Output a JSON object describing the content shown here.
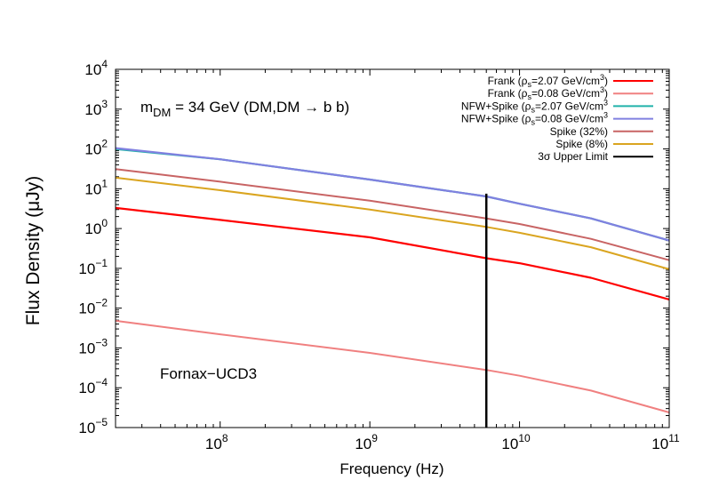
{
  "chart_data": {
    "type": "line",
    "title": "",
    "xlabel": "Frequency (Hz)",
    "ylabel": "Flux Density (μJy)",
    "xscale": "log",
    "yscale": "log",
    "xlim": [
      20000000.0,
      100000000000.0
    ],
    "ylim": [
      1e-05,
      10000.0
    ],
    "grid": false,
    "legend_position": "top-right",
    "x_ticks": [
      {
        "value": 100000000.0,
        "base": "10",
        "exp": "8"
      },
      {
        "value": 1000000000.0,
        "base": "10",
        "exp": "9"
      },
      {
        "value": 10000000000.0,
        "base": "10",
        "exp": "10"
      },
      {
        "value": 100000000000.0,
        "base": "10",
        "exp": "11"
      }
    ],
    "y_ticks": [
      {
        "value": 1e-05,
        "base": "10",
        "exp": "−5"
      },
      {
        "value": 0.0001,
        "base": "10",
        "exp": "−4"
      },
      {
        "value": 0.001,
        "base": "10",
        "exp": "−3"
      },
      {
        "value": 0.01,
        "base": "10",
        "exp": "−2"
      },
      {
        "value": 0.1,
        "base": "10",
        "exp": "−1"
      },
      {
        "value": 1.0,
        "base": "10",
        "exp": "0"
      },
      {
        "value": 10.0,
        "base": "10",
        "exp": "1"
      },
      {
        "value": 100.0,
        "base": "10",
        "exp": "2"
      },
      {
        "value": 1000.0,
        "base": "10",
        "exp": "3"
      },
      {
        "value": 10000.0,
        "base": "10",
        "exp": "4"
      }
    ],
    "x": [
      20000000.0,
      100000000.0,
      1000000000.0,
      6000000000.0,
      10000000000.0,
      30000000000.0,
      100000000000.0
    ],
    "series": [
      {
        "name": "Frank (ρs=2.07 GeV/cm3)",
        "color": "#ff0000",
        "width": 2.2,
        "values": [
          3.3,
          1.65,
          0.6,
          0.18,
          0.135,
          0.058,
          0.0165
        ]
      },
      {
        "name": "Frank (ρs=0.08 GeV/cm3)",
        "color": "#f08080",
        "width": 2.0,
        "values": [
          0.0048,
          0.0022,
          0.00075,
          0.00028,
          0.0002,
          8.5e-05,
          2.4e-05
        ]
      },
      {
        "name": "NFW+Spike (ρs=2.07 GeV/cm3)",
        "color": "#20b2aa",
        "width": 2.2,
        "values": [
          100,
          55,
          17,
          6.4,
          4.2,
          1.8,
          0.5
        ]
      },
      {
        "name": "NFW+Spike (ρs=0.08 GeV/cm3)",
        "color": "#8080e0",
        "width": 2.2,
        "values": [
          105,
          55,
          17,
          6.4,
          4.2,
          1.8,
          0.5
        ]
      },
      {
        "name": "Spike (32%)",
        "color": "#c86464",
        "width": 2.0,
        "values": [
          31,
          15,
          5.0,
          1.8,
          1.3,
          0.55,
          0.16
        ]
      },
      {
        "name": "Spike (8%)",
        "color": "#daa520",
        "width": 2.0,
        "values": [
          19,
          9.2,
          3.0,
          1.1,
          0.78,
          0.34,
          0.095
        ]
      }
    ],
    "upper_limit": {
      "name": "3σ Upper Limit",
      "color": "#000000",
      "x": 6000000000.0,
      "y": 7.5
    },
    "legend_entries": [
      {
        "pre": "Frank (ρ",
        "sub": "s",
        "post": "=2.07 GeV/cm",
        "sup": "3",
        "end": ")",
        "color": "#ff0000"
      },
      {
        "pre": "Frank (ρ",
        "sub": "s",
        "post": "=0.08 GeV/cm",
        "sup": "3",
        "end": ")",
        "color": "#f08080"
      },
      {
        "pre": "NFW+Spike (ρ",
        "sub": "s",
        "post": "=2.07 GeV/cm",
        "sup": "3",
        "end": "",
        "color": "#20b2aa"
      },
      {
        "pre": "NFW+Spike (ρ",
        "sub": "s",
        "post": "=0.08 GeV/cm",
        "sup": "3",
        "end": "",
        "color": "#8080e0"
      },
      {
        "pre": "Spike (32%)",
        "sub": "",
        "post": "",
        "sup": "",
        "end": "",
        "color": "#c86464"
      },
      {
        "pre": "Spike (8%)",
        "sub": "",
        "post": "",
        "sup": "",
        "end": "",
        "color": "#daa520"
      },
      {
        "pre": "3σ Upper Limit",
        "sub": "",
        "post": "",
        "sup": "",
        "end": "",
        "color": "#000000"
      }
    ],
    "annotations": {
      "mass_prefix": "m",
      "mass_sub": "DM",
      "mass_rest": " = 34 GeV (DM,DM → b b)",
      "target": "Fornax−UCD3"
    }
  }
}
